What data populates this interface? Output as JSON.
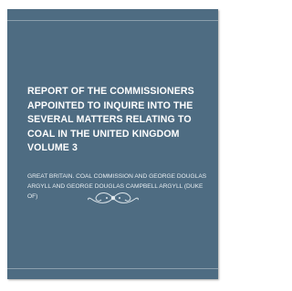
{
  "cover": {
    "title_lines": [
      "REPORT OF THE COMMISSIONERS",
      "APPOINTED TO INQUIRE INTO THE",
      "SEVERAL MATTERS RELATING TO",
      "COAL IN THE UNITED KINGDOM",
      "VOLUME 3"
    ],
    "author_lines": [
      "GREAT BRITAIN. COAL COMMISSION AND GEORGE DOUGLAS",
      "ARGYLL AND GEORGE DOUGLAS CAMPBELL ARGYLL (DUKE",
      "OF)"
    ]
  }
}
